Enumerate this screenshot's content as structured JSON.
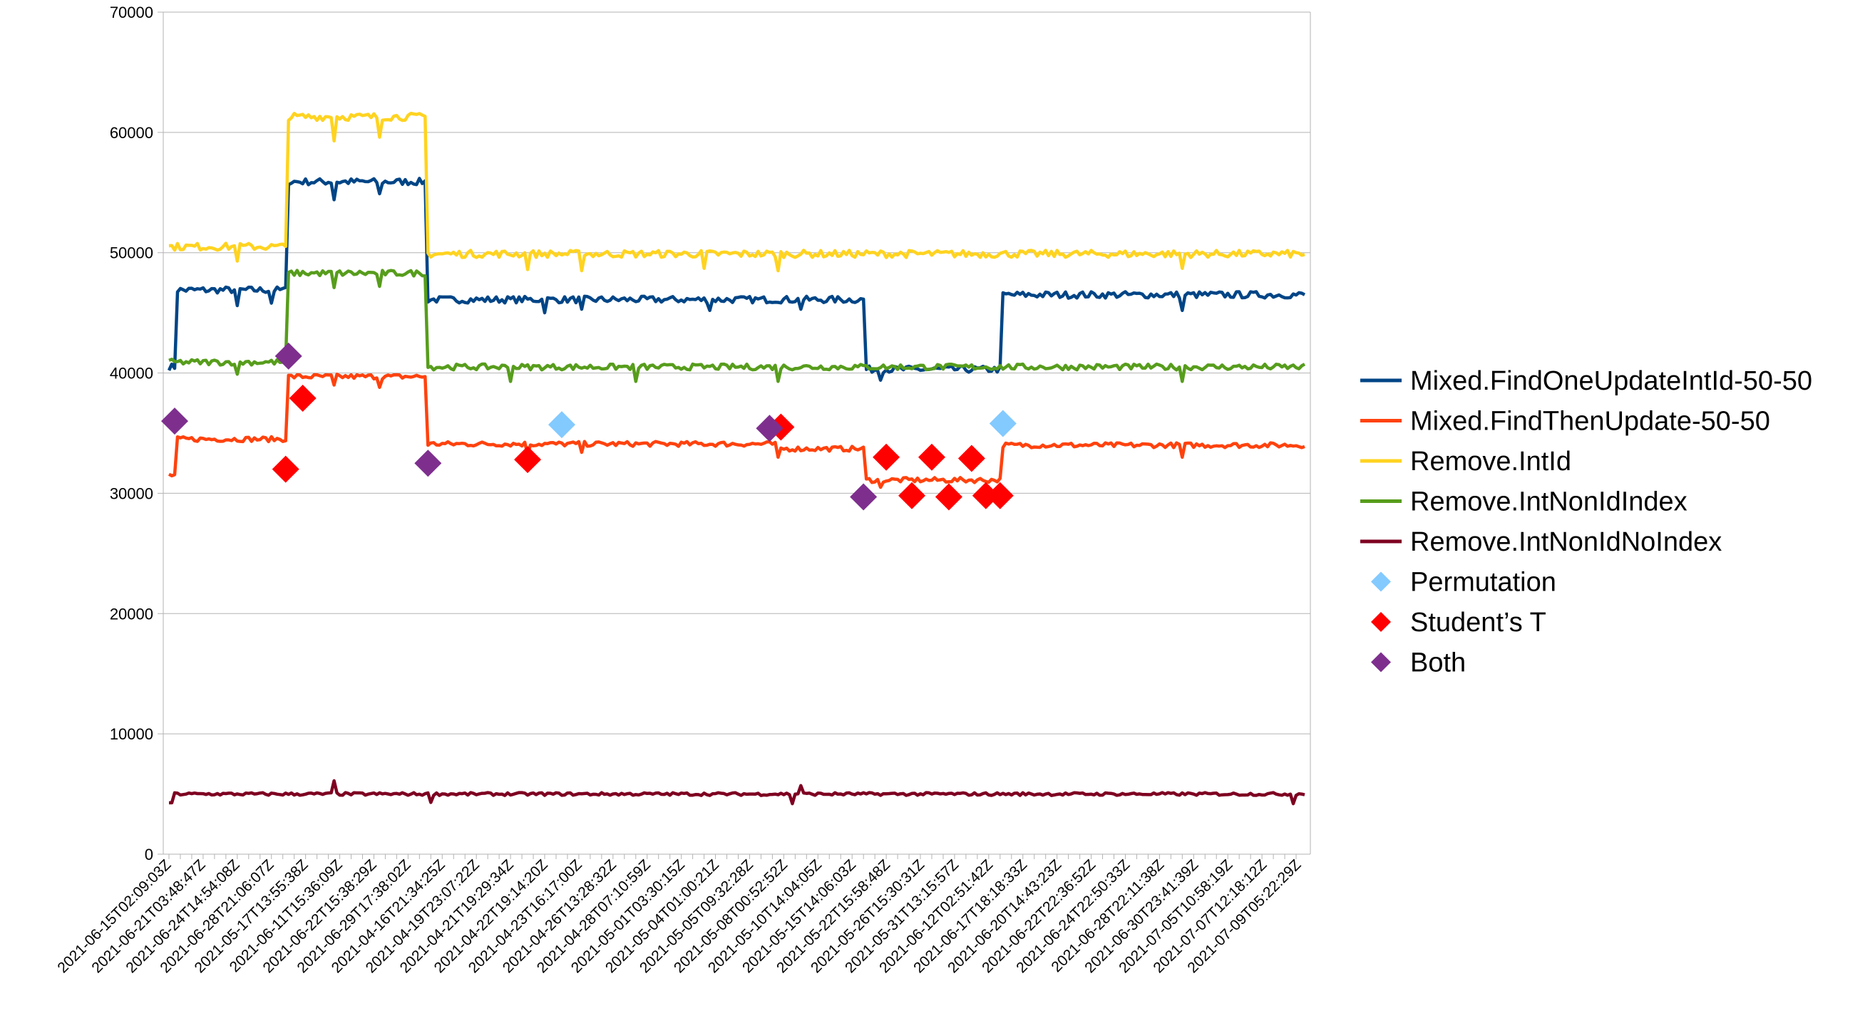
{
  "chart_data": {
    "type": "line",
    "title": "",
    "xlabel": "",
    "ylabel": "",
    "ylim": [
      0,
      70000
    ],
    "yticks": [
      0,
      10000,
      20000,
      30000,
      40000,
      50000,
      60000,
      70000
    ],
    "grid": "horizontal",
    "legend_position": "right",
    "x_count": 400,
    "x_tick_labels": [
      "2021-06-15T02:09:03Z",
      "2021-06-21T03:48:47Z",
      "2021-06-24T14:54:08Z",
      "2021-06-28T21:06:07Z",
      "2021-05-17T13:55:38Z",
      "2021-06-11T15:36:09Z",
      "2021-06-22T15:38:29Z",
      "2021-06-29T17:38:02Z",
      "2021-04-16T21:34:25Z",
      "2021-04-19T23:07:22Z",
      "2021-04-21T19:29:34Z",
      "2021-04-22T19:14:20Z",
      "2021-04-23T16:17:00Z",
      "2021-04-26T13:28:32Z",
      "2021-04-28T07:10:59Z",
      "2021-05-01T03:30:15Z",
      "2021-05-04T01:00:21Z",
      "2021-05-05T09:32:28Z",
      "2021-05-08T00:52:52Z",
      "2021-05-10T14:04:05Z",
      "2021-05-15T14:06:03Z",
      "2021-05-22T15:58:48Z",
      "2021-05-26T15:30:31Z",
      "2021-05-31T13:15:57Z",
      "2021-06-12T02:51:42Z",
      "2021-06-17T18:18:33Z",
      "2021-06-20T14:43:23Z",
      "2021-06-22T22:36:52Z",
      "2021-06-24T22:50:33Z",
      "2021-06-28T22:11:38Z",
      "2021-06-30T23:41:39Z",
      "2021-07-05T10:58:19Z",
      "2021-07-07T12:18:12Z",
      "2021-07-09T05:22:29Z"
    ],
    "series": [
      {
        "name": "Mixed.FindOneUpdateIntId-50-50",
        "color": "#004586",
        "segments": [
          {
            "from": 0,
            "to": 3,
            "value": 40500
          },
          {
            "from": 3,
            "to": 42,
            "value": 46900
          },
          {
            "from": 42,
            "to": 91,
            "value": 55900
          },
          {
            "from": 91,
            "to": 245,
            "value": 46100
          },
          {
            "from": 245,
            "to": 293,
            "value": 40300
          },
          {
            "from": 293,
            "to": 400,
            "value": 46500
          }
        ],
        "dips": [
          {
            "x": 24,
            "value": 45600
          },
          {
            "x": 36,
            "value": 45800
          },
          {
            "x": 58,
            "value": 54400
          },
          {
            "x": 74,
            "value": 54900
          },
          {
            "x": 132,
            "value": 45000
          },
          {
            "x": 145,
            "value": 45300
          },
          {
            "x": 190,
            "value": 45200
          },
          {
            "x": 222,
            "value": 45300
          },
          {
            "x": 250,
            "value": 39400
          },
          {
            "x": 356,
            "value": 45200
          }
        ]
      },
      {
        "name": "Mixed.FindThenUpdate-50-50",
        "color": "#ff420e",
        "segments": [
          {
            "from": 0,
            "to": 3,
            "value": 31500
          },
          {
            "from": 3,
            "to": 42,
            "value": 34500
          },
          {
            "from": 42,
            "to": 91,
            "value": 39700
          },
          {
            "from": 91,
            "to": 214,
            "value": 34100
          },
          {
            "from": 214,
            "to": 245,
            "value": 33700
          },
          {
            "from": 245,
            "to": 293,
            "value": 31100
          },
          {
            "from": 293,
            "to": 400,
            "value": 34000
          }
        ],
        "dips": [
          {
            "x": 58,
            "value": 39000
          },
          {
            "x": 74,
            "value": 38800
          },
          {
            "x": 126,
            "value": 33200
          },
          {
            "x": 145,
            "value": 33400
          },
          {
            "x": 214,
            "value": 33000
          },
          {
            "x": 250,
            "value": 30500
          },
          {
            "x": 356,
            "value": 33000
          }
        ]
      },
      {
        "name": "Remove.IntId",
        "color": "#ffd320",
        "segments": [
          {
            "from": 0,
            "to": 42,
            "value": 50500
          },
          {
            "from": 42,
            "to": 91,
            "value": 61300
          },
          {
            "from": 91,
            "to": 400,
            "value": 49900
          }
        ],
        "dips": [
          {
            "x": 24,
            "value": 49300
          },
          {
            "x": 58,
            "value": 59300
          },
          {
            "x": 74,
            "value": 59600
          },
          {
            "x": 126,
            "value": 48600
          },
          {
            "x": 145,
            "value": 48500
          },
          {
            "x": 188,
            "value": 48700
          },
          {
            "x": 214,
            "value": 48500
          },
          {
            "x": 356,
            "value": 48700
          }
        ]
      },
      {
        "name": "Remove.IntNonIdIndex",
        "color": "#579d1c",
        "segments": [
          {
            "from": 0,
            "to": 42,
            "value": 40900
          },
          {
            "from": 42,
            "to": 91,
            "value": 48300
          },
          {
            "from": 91,
            "to": 400,
            "value": 40500
          }
        ],
        "dips": [
          {
            "x": 24,
            "value": 39900
          },
          {
            "x": 58,
            "value": 47100
          },
          {
            "x": 74,
            "value": 47200
          },
          {
            "x": 120,
            "value": 39300
          },
          {
            "x": 164,
            "value": 39300
          },
          {
            "x": 214,
            "value": 39300
          },
          {
            "x": 356,
            "value": 39300
          }
        ]
      },
      {
        "name": "Remove.IntNonIdNoIndex",
        "color": "#7e0021",
        "segments": [
          {
            "from": 0,
            "to": 2,
            "value": 4300
          },
          {
            "from": 2,
            "to": 400,
            "value": 5000
          }
        ],
        "dips": [
          {
            "x": 58,
            "value": 6100
          },
          {
            "x": 92,
            "value": 4300
          },
          {
            "x": 219,
            "value": 4200
          },
          {
            "x": 222,
            "value": 5700
          },
          {
            "x": 395,
            "value": 4200
          }
        ]
      }
    ],
    "markers": [
      {
        "name": "Permutation",
        "color": "#83caff",
        "points": [
          {
            "x": 138,
            "value": 35700
          },
          {
            "x": 293,
            "value": 35800
          }
        ]
      },
      {
        "name": "Student’s T",
        "color": "#ff0000",
        "points": [
          {
            "x": 41,
            "value": 32000
          },
          {
            "x": 47,
            "value": 37900
          },
          {
            "x": 126,
            "value": 32800
          },
          {
            "x": 215,
            "value": 35500
          },
          {
            "x": 252,
            "value": 33000
          },
          {
            "x": 261,
            "value": 29800
          },
          {
            "x": 268,
            "value": 33000
          },
          {
            "x": 274,
            "value": 29700
          },
          {
            "x": 282,
            "value": 32900
          },
          {
            "x": 287,
            "value": 29800
          },
          {
            "x": 292,
            "value": 29800
          }
        ]
      },
      {
        "name": "Both",
        "color": "#7e2f8e",
        "points": [
          {
            "x": 2,
            "value": 36000
          },
          {
            "x": 42,
            "value": 41400
          },
          {
            "x": 91,
            "value": 32500
          },
          {
            "x": 211,
            "value": 35400
          },
          {
            "x": 244,
            "value": 29700
          }
        ]
      }
    ]
  }
}
